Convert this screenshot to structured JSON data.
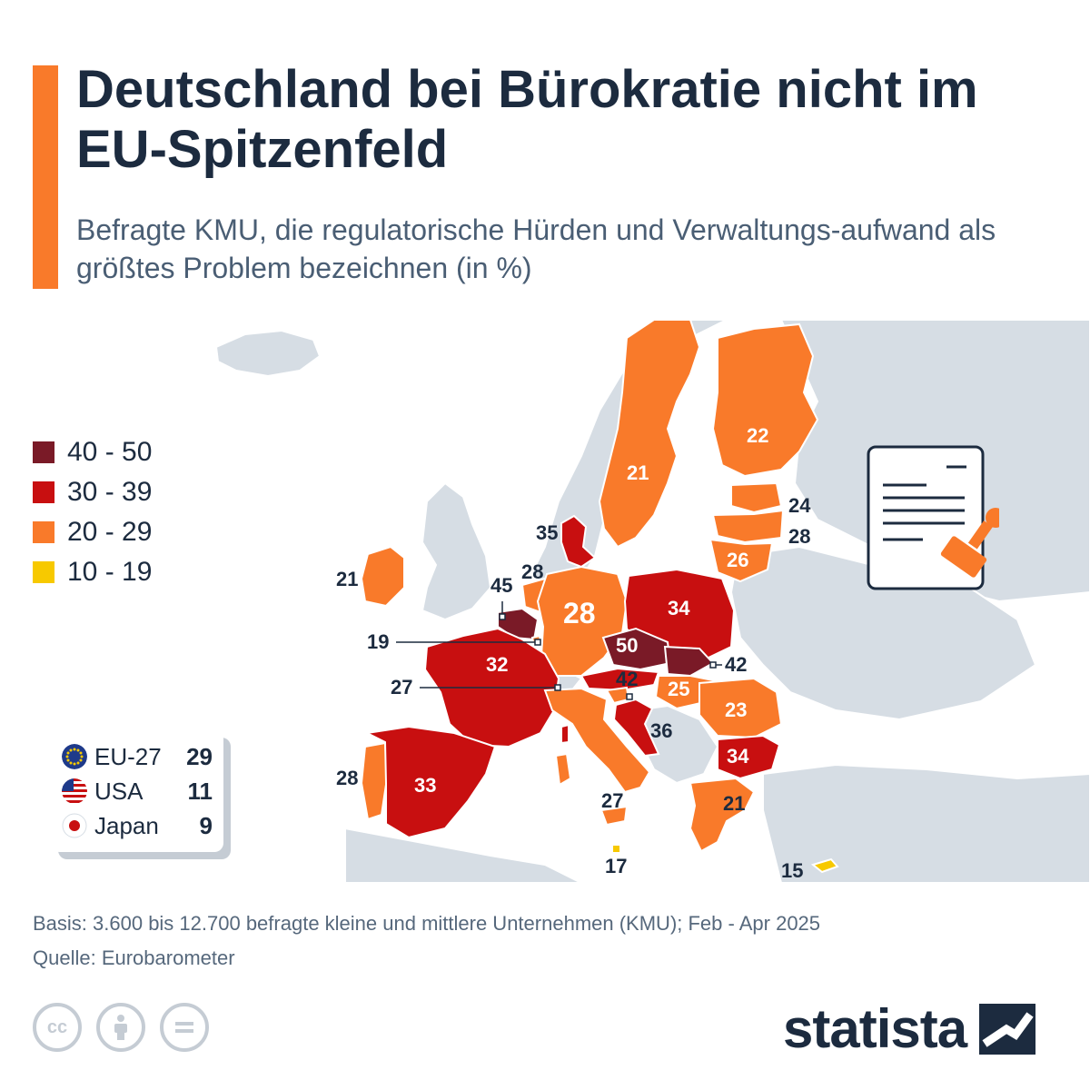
{
  "header": {
    "title": "Deutschland bei Bürokratie nicht im EU-Spitzenfeld",
    "subtitle": "Befragte KMU, die regulatorische Hürden und Verwaltungs-aufwand als größtes Problem bezeichnen (in %)"
  },
  "colors": {
    "accent": "#f97a2a",
    "range_40_50": "#7a1a27",
    "range_30_39": "#c80f10",
    "range_20_29": "#f97a2a",
    "range_10_19": "#f7c900",
    "land_grey": "#d6dde4",
    "sea_white": "#ffffff",
    "text_dark": "#1c2b3f"
  },
  "legend": [
    {
      "label": "40 - 50",
      "color": "#7a1a27"
    },
    {
      "label": "30 - 39",
      "color": "#c80f10"
    },
    {
      "label": "20 - 29",
      "color": "#f97a2a"
    },
    {
      "label": "10 - 19",
      "color": "#f7c900"
    }
  ],
  "benchmarks": [
    {
      "name": "EU-27",
      "value": "29",
      "flag": "eu-flag-icon"
    },
    {
      "name": "USA",
      "value": "11",
      "flag": "us-flag-icon"
    },
    {
      "name": "Japan",
      "value": "9",
      "flag": "japan-flag-icon"
    }
  ],
  "map_values": {
    "finland": "22",
    "sweden": "21",
    "estonia": "24",
    "latvia": "28",
    "lithuania": "26",
    "denmark": "35",
    "ireland": "21",
    "netherlands": "28",
    "belgium": "45",
    "luxembourg": "19",
    "germany": "28",
    "poland": "34",
    "czechia": "50",
    "slovakia": "42",
    "france": "32",
    "austria": "42",
    "hungary": "25",
    "romania": "23",
    "croatia": "36",
    "bulgaria": "34",
    "portugal": "28",
    "spain": "33",
    "italy": "27",
    "malta": "17",
    "greece": "21",
    "cyprus": "15",
    "slovenia": "27"
  },
  "footer": {
    "basis": "Basis: 3.600 bis 12.700 befragte kleine und mittlere Unternehmen (KMU); Feb - Apr 2025",
    "source": "Quelle: Eurobarometer",
    "brand": "statista",
    "license_icons": [
      "cc",
      "by",
      "nd"
    ]
  }
}
